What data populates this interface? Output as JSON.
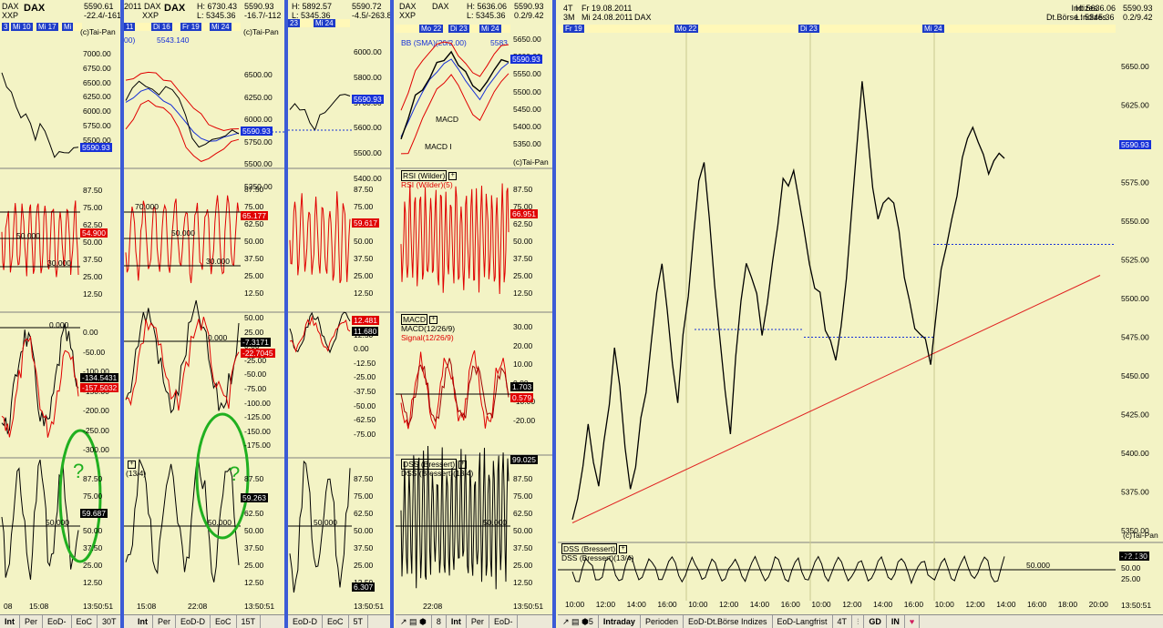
{
  "panels": [
    {
      "hdr": [
        "DAX",
        "XXP"
      ],
      "title": "DAX",
      "prices": [
        "5590.61",
        "-22.4/-161"
      ],
      "src": "(c)Tai-Pan",
      "dates": [
        "3",
        "Mi 10",
        "Mi 17",
        "Mi"
      ],
      "scale_main": [
        "7000.00",
        "6750.00",
        "6500.00",
        "6250.00",
        "6000.00",
        "5750.00",
        "5500.00"
      ],
      "scale_rsi": [
        "87.50",
        "75.00",
        "62.50",
        "50.00",
        "37.50",
        "25.00",
        "12.50"
      ],
      "scale_macd": [
        "0.00",
        "-50.00",
        "-100.00",
        "-150.00",
        "-200.00",
        "-250.00",
        "-300.00"
      ],
      "scale_dss": [
        "87.50",
        "75.00",
        "62.50",
        "50.00",
        "37.50",
        "25.00",
        "12.50"
      ],
      "tags": {
        "price": "5590.93",
        "rsi": "54.900",
        "macd1": "-134.5431",
        "macd2": "-157.5032",
        "dss": "59.687"
      },
      "levels": {
        "rsi_hi": "",
        "rsi_mid": "50.000",
        "rsi_lo": "30.000",
        "macd_zero": "0.000",
        "dss_mid": "50.000"
      },
      "xlabels": [
        "08",
        "15:08",
        "13:50:51"
      ],
      "tabs": [
        "Int",
        "Per",
        "EoD-",
        "EoC",
        "30T"
      ]
    },
    {
      "hdr": [
        "2011",
        "XXP"
      ],
      "title": "DAX",
      "prices": [
        "H: 6730.43",
        "L: 5345.36"
      ],
      "prices2": [
        "5590.93",
        "-16.7/-112"
      ],
      "src": "(c)Tai-Pan",
      "dates": [
        "11",
        "Di 16",
        "Fr 19",
        "Mi 24"
      ],
      "sma_label": "00)",
      "sma_val": "5543.140",
      "scale_main": [
        "6500.00",
        "6250.00",
        "6000.00",
        "5750.00",
        "5500.00",
        "5250.00"
      ],
      "scale_rsi": [
        "87.50",
        "75.00",
        "62.50",
        "50.00",
        "37.50",
        "25.00",
        "12.50"
      ],
      "scale_macd": [
        "50.00",
        "25.00",
        "0.00",
        "-25.00",
        "-50.00",
        "-75.00",
        "-100.00",
        "-125.00",
        "-150.00",
        "-175.00"
      ],
      "scale_dss": [
        "87.50",
        "75.00",
        "62.50",
        "50.00",
        "37.50",
        "25.00",
        "12.50"
      ],
      "tags": {
        "price": "5590.93",
        "rsi": "65.177",
        "macd1": "-7.3171",
        "macd2": "-22.7045",
        "dss": "59.263"
      },
      "levels": {
        "rsi_hi": "70.000",
        "rsi_mid": "50.000",
        "rsi_lo": "30.000",
        "macd_zero": "0.000",
        "dss_mid": "50.000"
      },
      "dss_lbl": "(13/4)",
      "xlabels": [
        "15:08",
        "22:08",
        "13:50:51"
      ],
      "tabs": [
        "Int",
        "Per",
        "EoD-D",
        "EoC",
        "15T"
      ]
    },
    {
      "prices": [
        "H: 5892.57",
        "L: 5345.36"
      ],
      "prices2": [
        "5590.72",
        "-4.5/-263.8"
      ],
      "dates": [
        "23",
        "Mi 24"
      ],
      "scale_main": [
        "6000.00",
        "5800.00",
        "5700.00",
        "5600.00",
        "5500.00",
        "5400.00"
      ],
      "scale_rsi": [
        "87.50",
        "75.00",
        "62.50",
        "50.00",
        "37.50",
        "25.00",
        "12.50"
      ],
      "scale_macd": [
        "25.00",
        "12.50",
        "0.00",
        "-12.50",
        "-25.00",
        "-37.50",
        "-50.00",
        "-62.50",
        "-75.00"
      ],
      "scale_dss": [
        "87.50",
        "75.00",
        "62.50",
        "50.00",
        "37.50",
        "25.00",
        "12.50"
      ],
      "tags": {
        "price": "5590.93",
        "rsi": "59.617",
        "macd1": "12.481",
        "macd2": "11.680",
        "dss": "6.307"
      },
      "levels": {
        "dss_mid": "50.000"
      },
      "xlabels": [
        "13:50:51"
      ],
      "tabs": [
        "EoD-D",
        "EoC",
        "5T"
      ]
    },
    {
      "hdr": [
        "DAX",
        "XXP"
      ],
      "title": "DAX",
      "prices": [
        "H: 5636.06",
        "L: 5345.36"
      ],
      "prices2": [
        "5590.93",
        "0.2/9.42"
      ],
      "src": "(c)Tai-Pan",
      "dates": [
        "Mo 22",
        "Di 23",
        "Mi 24"
      ],
      "bb_label": "BB (SMA)(20/2.00)",
      "bb_val": "5583",
      "macd_overlay": "MACD",
      "macd_overlay2": "MACD I",
      "scale_main": [
        "5650.00",
        "5600.00",
        "5550.00",
        "5500.00",
        "5450.00",
        "5400.00",
        "5350.00"
      ],
      "rsi_title": "RSI (Wilder)",
      "rsi_sub": "RSI (Wilder)(5)",
      "scale_rsi": [
        "87.50",
        "75.00",
        "62.50",
        "50.00",
        "37.50",
        "25.00",
        "12.50"
      ],
      "macd_title": "MACD",
      "macd_sub1": "MACD(12/26/9)",
      "macd_sub2": "Signal(12/26/9)",
      "scale_macd": [
        "30.00",
        "20.00",
        "10.00",
        "0.00",
        "-10.00",
        "-20.00"
      ],
      "dss_title": "DSS (Bressert)",
      "dss_sub": "DSS (Bressert)(13/4)",
      "scale_dss": [
        "87.50",
        "75.00",
        "62.50",
        "50.00",
        "37.50",
        "25.00",
        "12.50"
      ],
      "tags": {
        "price": "5590.93",
        "rsi": "66.951",
        "macd1": "1.703",
        "macd2": "0.579",
        "dss": "99.025"
      },
      "levels": {
        "dss_mid": "50.000"
      },
      "xlabels": [
        "22:08",
        "13:50:51"
      ],
      "tabs": [
        "8",
        "Int",
        "Per",
        "EoD-"
      ]
    }
  ],
  "main": {
    "hdr_left": [
      "4T",
      "3M"
    ],
    "hdr_dates": [
      "Fr 19.08.2011",
      "Mi 24.08.2011"
    ],
    "title": "DAX",
    "index_group": "Indizes",
    "exchange": "Dt.Börse Indizes",
    "high": "H: 5636.06",
    "low": "L: 5345.36",
    "last": "5590.93",
    "change": "0.2/9.42",
    "src": "(c)Tai-Pan",
    "date_markers": [
      "Fr 19",
      "Mo 22",
      "Di 23",
      "Mi 24"
    ],
    "dss_title": "DSS (Bressert)",
    "dss_sub": "DSS (Bressert)(13/4)",
    "dss_mid": "50.000",
    "dss_value": "-72.180",
    "dss_scale": [
      "75.00",
      "50.00",
      "25.00"
    ],
    "time_ref": "13:50:51",
    "tabs": [
      "Intraday",
      "Perioden",
      "EoD-Dt.Börse Indizes",
      "EoD-Langfrist"
    ],
    "tab_extra": [
      "4T",
      "GD",
      "IN"
    ]
  },
  "annotation": {
    "mark": "?"
  },
  "chart_data": {
    "type": "line",
    "title": "DAX",
    "ylabel": "",
    "xlabel": "",
    "x_ticks": [
      "10:00",
      "12:00",
      "14:00",
      "16:00",
      "10:00",
      "12:00",
      "14:00",
      "16:00",
      "10:00",
      "12:00",
      "14:00",
      "16:00",
      "10:00",
      "12:00",
      "14:00",
      "16:00",
      "18:00",
      "20:00"
    ],
    "y_ticks": [
      5650,
      5625,
      5600,
      5575,
      5550,
      5525,
      5500,
      5475,
      5450,
      5425,
      5400,
      5375,
      5350
    ],
    "ylim": [
      5350,
      5660
    ],
    "series": [
      {
        "values": [
          5355,
          5370,
          5390,
          5420,
          5395,
          5380,
          5405,
          5430,
          5470,
          5440,
          5400,
          5380,
          5395,
          5420,
          5440,
          5470,
          5500,
          5520,
          5490,
          5455,
          5430,
          5475,
          5505,
          5545,
          5580,
          5590,
          5555,
          5510,
          5470,
          5440,
          5415,
          5460,
          5495,
          5525,
          5515,
          5500,
          5480,
          5500,
          5520,
          5550,
          5575,
          5570,
          5585,
          5560,
          5540,
          5520,
          5510,
          5500,
          5480,
          5470,
          5460,
          5480,
          5510,
          5560,
          5600,
          5640,
          5610,
          5570,
          5550,
          5560,
          5565,
          5560,
          5540,
          5515,
          5500,
          5480,
          5475,
          5470,
          5460,
          5490,
          5520,
          5535,
          5550,
          5570,
          5590,
          5605,
          5610,
          5600,
          5590,
          5580,
          5585,
          5590,
          5590
        ]
      }
    ],
    "trend_line": {
      "from": 5355,
      "to": 5515
    },
    "support_levels": [
      5480,
      5475,
      5535
    ],
    "grid": false,
    "legend": "none"
  }
}
